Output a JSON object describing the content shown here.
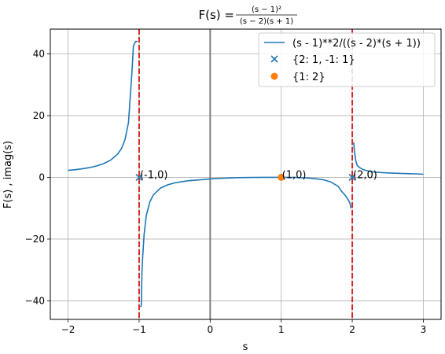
{
  "chart_data": {
    "type": "line",
    "title_prefix": "F(s) = ",
    "title_numerator": "(s − 1)²",
    "title_denominator": "(s − 2)(s + 1)",
    "xlabel": "s",
    "ylabel": "F(s) , imag(s)",
    "xlim": [
      -2.25,
      3.25
    ],
    "ylim": [
      -46,
      48
    ],
    "xticks": [
      -2,
      -1,
      0,
      1,
      2,
      3
    ],
    "yticks": [
      -40,
      -20,
      0,
      20,
      40
    ],
    "grid": true,
    "legend_position": "top-right",
    "colors": {
      "curve": "#1f77b4",
      "poles": "#1f77b4",
      "zeros": "#ff7f0e",
      "asymptote": "#d62728",
      "axis_line": "#808080"
    },
    "series": [
      {
        "name": "(s - 1)**2/((s - 2)*(s + 1))",
        "kind": "line",
        "segments": [
          {
            "x": [
              -2.0,
              -1.9,
              -1.8,
              -1.7,
              -1.6,
              -1.5,
              -1.4,
              -1.3,
              -1.25,
              -1.2,
              -1.15,
              -1.1,
              -1.08,
              -1.06,
              -1.05,
              -1.04,
              -1.03,
              -1.02
            ],
            "y": [
              2.25,
              2.47,
              2.76,
              3.15,
              3.68,
              4.43,
              5.59,
              7.58,
              9.28,
              12.1,
              17.7,
              34.3,
              42.5,
              43.5,
              44,
              44,
              44,
              44
            ]
          },
          {
            "x": [
              -0.98,
              -0.97,
              -0.96,
              -0.95,
              -0.93,
              -0.9,
              -0.85,
              -0.8,
              -0.7,
              -0.6,
              -0.5,
              -0.4,
              -0.3,
              -0.2,
              -0.1,
              0.0,
              0.2,
              0.4,
              0.6,
              0.8,
              1.0,
              1.2,
              1.4,
              1.5,
              1.6,
              1.7,
              1.8,
              1.85,
              1.9,
              1.93,
              1.95,
              1.97,
              1.98
            ],
            "y": [
              -42,
              -41.5,
              -30.5,
              -25.7,
              -18.5,
              -12.45,
              -8.0,
              -5.7,
              -3.48,
              -2.44,
              -1.8,
              -1.39,
              -1.1,
              -0.89,
              -0.73,
              -0.5,
              -0.27,
              -0.1,
              -0.04,
              -0.005,
              0,
              -0.05,
              -0.26,
              -0.5,
              -0.8,
              -1.5,
              -2.9,
              -4.5,
              -5.8,
              -6.8,
              -7.5,
              -8.5,
              -10
            ]
          },
          {
            "x": [
              2.02,
              2.03,
              2.05,
              2.07,
              2.1,
              2.15,
              2.2,
              2.3,
              2.4,
              2.5,
              2.6,
              2.7,
              2.8,
              2.9,
              3.0
            ],
            "y": [
              11.3,
              8.5,
              5.3,
              3.8,
              3.2,
              2.55,
              2.18,
              1.75,
              1.55,
              1.43,
              1.33,
              1.25,
              1.18,
              1.12,
              1.0
            ]
          }
        ]
      },
      {
        "name": "{2: 1, -1: 1}",
        "kind": "marker-x",
        "points": [
          {
            "x": -1,
            "y": 0
          },
          {
            "x": 2,
            "y": 0
          }
        ]
      },
      {
        "name": "{1: 2}",
        "kind": "marker-circle",
        "points": [
          {
            "x": 1,
            "y": 0
          }
        ]
      }
    ],
    "vertical_asymptotes": [
      -1,
      2
    ],
    "annotations": [
      {
        "x": -1,
        "y": 0,
        "text": "(-1,0)"
      },
      {
        "x": 1,
        "y": 0,
        "text": "(1,0)"
      },
      {
        "x": 2,
        "y": 0,
        "text": "(2,0)"
      }
    ]
  }
}
